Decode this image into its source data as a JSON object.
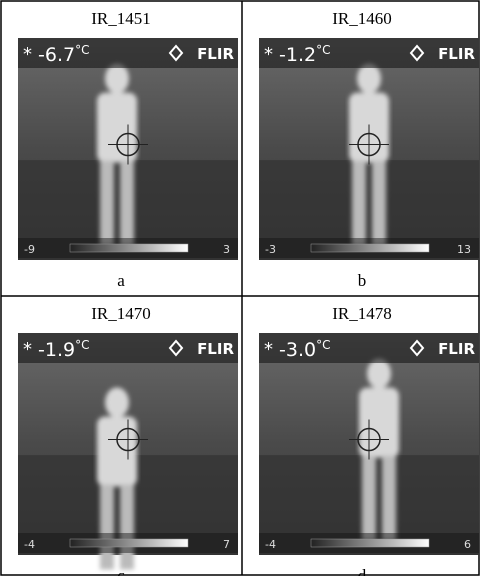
{
  "panels": [
    {
      "title": "IR_1451",
      "marker": "*",
      "reading": "-6.7",
      "unit": "°C",
      "brand": "FLIR",
      "scale_min": "-9",
      "scale_max": "3",
      "label": "a"
    },
    {
      "title": "IR_1460",
      "marker": "*",
      "reading": "-1.2",
      "unit": "°C",
      "brand": "FLIR",
      "scale_min": "-3",
      "scale_max": "13",
      "label": "b"
    },
    {
      "title": "IR_1470",
      "marker": "*",
      "reading": "-1.9",
      "unit": "°C",
      "brand": "FLIR",
      "scale_min": "-4",
      "scale_max": "7",
      "label": "c"
    },
    {
      "title": "IR_1478",
      "marker": "*",
      "reading": "-3.0",
      "unit": "°C",
      "brand": "FLIR",
      "scale_min": "-4",
      "scale_max": "6",
      "label": "d"
    }
  ]
}
